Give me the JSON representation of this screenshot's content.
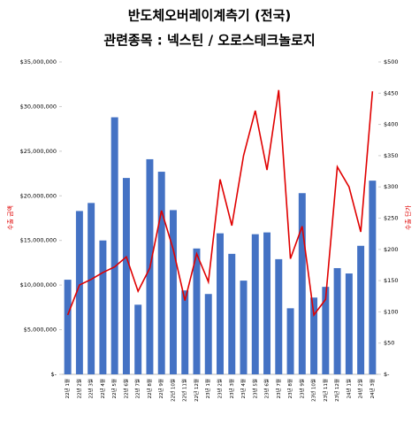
{
  "chart_data": {
    "type": "bar_line",
    "title": "반도체오버레이계측기 (전국)",
    "subtitle": "관련종목 : 넥스틴 / 오로스테크놀로지",
    "y_label": "수출 금액",
    "y2_label": "수출 단가",
    "categories": [
      "22년 1월",
      "22년 2월",
      "22년 3월",
      "22년 4월",
      "22년 5월",
      "22년 6월",
      "22년 7월",
      "22년 8월",
      "22년 9월",
      "22년 10월",
      "22년 11월",
      "22년 12월",
      "23년 1월",
      "23년 2월",
      "23년 3월",
      "23년 4월",
      "23년 5월",
      "23년 6월",
      "23년 7월",
      "23년 8월",
      "23년 9월",
      "23년 10월",
      "23년 11월",
      "23년 12월",
      "24년 1월",
      "24년 2월",
      "24년 3월"
    ],
    "series": [
      {
        "name": "수출 금액",
        "color": "#4472c4",
        "values": [
          10600000,
          18300000,
          19200000,
          15000000,
          28800000,
          22000000,
          7800000,
          24100000,
          22700000,
          18400000,
          9400000,
          14100000,
          9000000,
          15800000,
          13500000,
          10500000,
          15700000,
          15900000,
          12900000,
          7400000,
          20300000,
          8600000,
          9800000,
          11900000,
          11300000,
          14400000,
          21700000
        ]
      },
      {
        "name": "수출 단가",
        "color": "#e00000",
        "axis": "y2",
        "values": [
          95,
          143,
          152,
          163,
          172,
          188,
          133,
          170,
          262,
          200,
          118,
          193,
          148,
          312,
          238,
          350,
          422,
          327,
          455,
          185,
          237,
          95,
          120,
          332,
          300,
          228,
          453
        ]
      }
    ],
    "ylim": [
      0,
      35000000
    ],
    "yticks": [
      {
        "value": 0,
        "label": "$-"
      },
      {
        "value": 5000000,
        "label": "$5,000,000"
      },
      {
        "value": 10000000,
        "label": "$10,000,000"
      },
      {
        "value": 15000000,
        "label": "$15,000,000"
      },
      {
        "value": 20000000,
        "label": "$20,000,000"
      },
      {
        "value": 25000000,
        "label": "$25,000,000"
      },
      {
        "value": 30000000,
        "label": "$30,000,000"
      },
      {
        "value": 35000000,
        "label": "$35,000,000"
      }
    ],
    "y2lim": [
      0,
      500
    ],
    "y2ticks": [
      {
        "value": 0,
        "label": "$-"
      },
      {
        "value": 50,
        "label": "$50"
      },
      {
        "value": 100,
        "label": "$100"
      },
      {
        "value": 150,
        "label": "$150"
      },
      {
        "value": 200,
        "label": "$200"
      },
      {
        "value": 250,
        "label": "$250"
      },
      {
        "value": 300,
        "label": "$300"
      },
      {
        "value": 350,
        "label": "$350"
      },
      {
        "value": 400,
        "label": "$400"
      },
      {
        "value": 450,
        "label": "$450"
      },
      {
        "value": 500,
        "label": "$500"
      }
    ]
  }
}
